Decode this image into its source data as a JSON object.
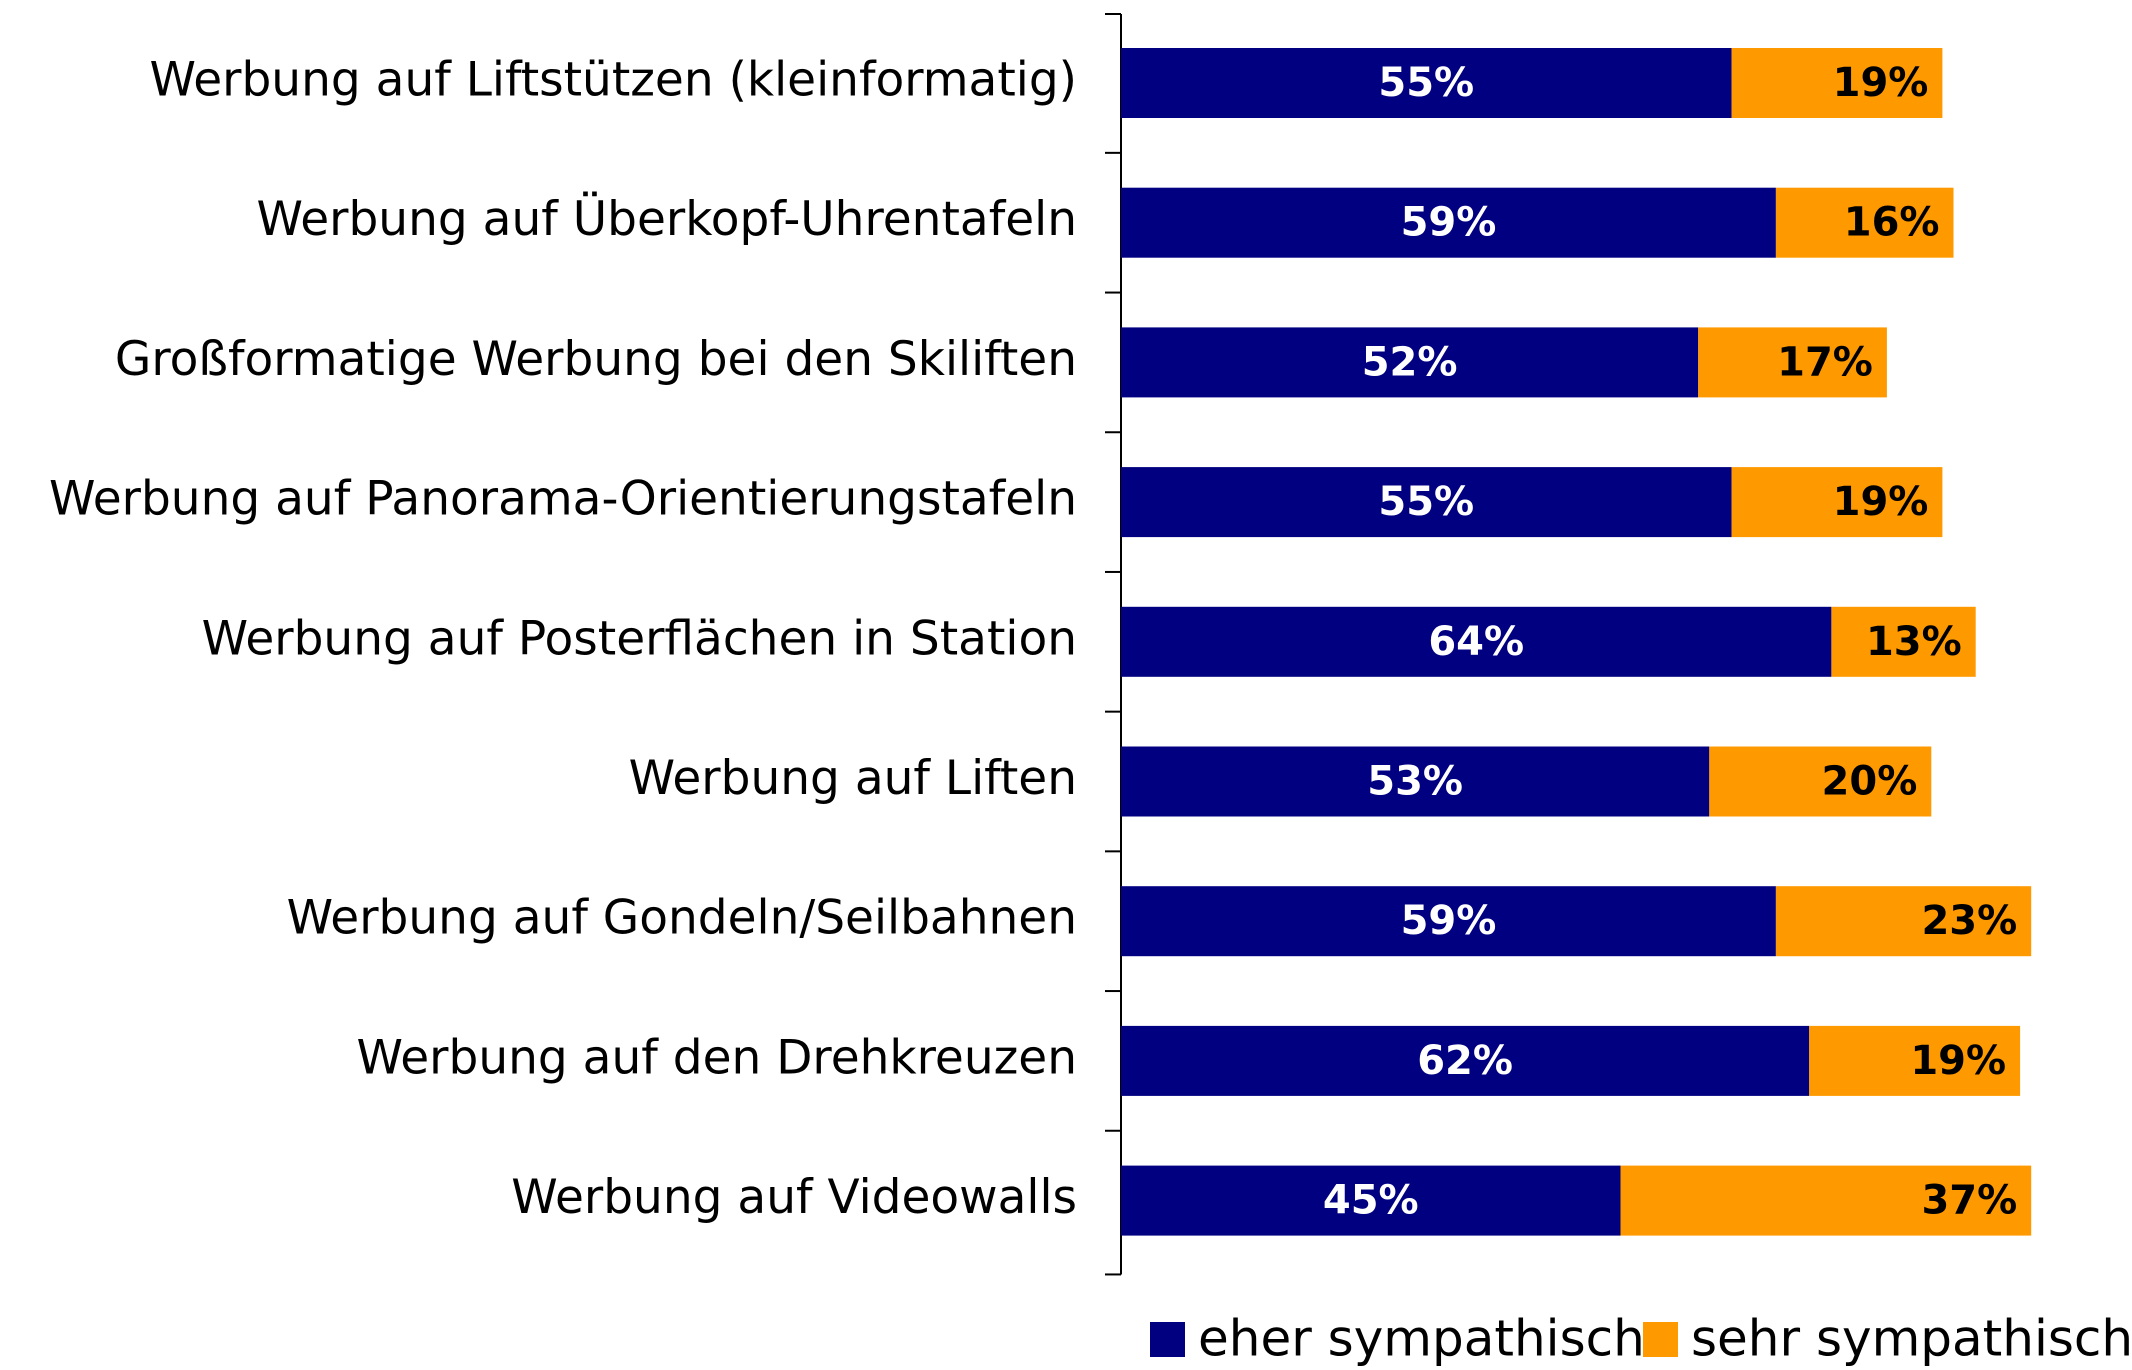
{
  "chart_data": {
    "type": "stacked_barh",
    "categories": [
      "Werbung auf Liftstützen (kleinformatig)",
      "Werbung auf Überkopf-Uhrentafeln",
      "Großformatige Werbung bei den Skiliften",
      "Werbung auf Panorama-Orientierungstafeln",
      "Werbung auf Posterflächen in Station",
      "Werbung auf Liften",
      "Werbung auf Gondeln/Seilbahnen",
      "Werbung auf den Drehkreuzen",
      "Werbung auf Videowalls"
    ],
    "series": [
      {
        "name": "eher sympathisch",
        "color": "#000080",
        "values": [
          55,
          59,
          52,
          55,
          64,
          53,
          59,
          62,
          45
        ],
        "value_labels": [
          "55%",
          "59%",
          "52%",
          "55%",
          "64%",
          "53%",
          "59%",
          "62%",
          "45%"
        ]
      },
      {
        "name": "sehr sympathisch",
        "color": "#ff9900",
        "values": [
          19,
          16,
          17,
          19,
          13,
          20,
          23,
          19,
          37
        ],
        "value_labels": [
          "19%",
          "16%",
          "17%",
          "19%",
          "13%",
          "20%",
          "23%",
          "19%",
          "37%"
        ]
      }
    ],
    "xlim": [
      0,
      90
    ],
    "legend": "bottom"
  }
}
